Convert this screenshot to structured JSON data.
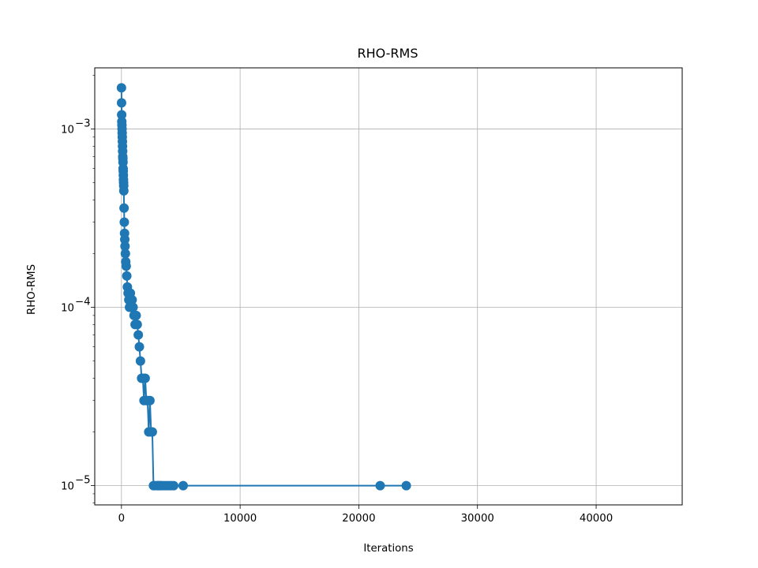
{
  "chart_data": {
    "type": "line",
    "title": "RHO-RMS",
    "xlabel": "Iterations",
    "ylabel": "RHO-RMS",
    "xscale": "linear",
    "yscale": "log",
    "xlim": [
      -2250,
      47250
    ],
    "ylim": [
      7.8e-06,
      0.0022
    ],
    "grid": true,
    "legend": "none",
    "series_color": "#1f77b4",
    "xticks": [
      {
        "value": 0,
        "label": "0"
      },
      {
        "value": 10000,
        "label": "10000"
      },
      {
        "value": 20000,
        "label": "20000"
      },
      {
        "value": 30000,
        "label": "30000"
      },
      {
        "value": 40000,
        "label": "40000"
      }
    ],
    "yticks": [
      {
        "value": 1e-05,
        "base": "10",
        "exp": "−5"
      },
      {
        "value": 0.0001,
        "base": "10",
        "exp": "−4"
      },
      {
        "value": 0.001,
        "base": "10",
        "exp": "−3"
      }
    ],
    "series": [
      {
        "x": [
          0,
          10,
          20,
          30,
          40,
          50,
          60,
          70,
          80,
          90,
          100,
          110,
          120,
          130,
          140,
          150,
          160,
          170,
          180,
          190,
          200,
          220,
          240,
          260,
          280,
          300,
          330,
          360,
          400,
          450,
          500,
          560,
          620,
          680,
          750,
          820,
          900,
          980,
          1060,
          1150,
          1240,
          1330,
          1420,
          1510,
          1600,
          1700,
          1800,
          1900,
          2000,
          2100,
          2200,
          2300,
          2400,
          2500,
          2600,
          2700,
          2800,
          3000,
          3100,
          3200,
          3300,
          3400,
          3600,
          3800,
          4000,
          4200,
          4400,
          5200,
          21800,
          24000
        ],
        "y": [
          0.0017,
          0.0014,
          0.0012,
          0.0011,
          0.00105,
          0.001,
          0.00095,
          0.0009,
          0.00085,
          0.0008,
          0.00075,
          0.0007,
          0.00068,
          0.00065,
          0.0006,
          0.00058,
          0.00055,
          0.00052,
          0.0005,
          0.00048,
          0.00045,
          0.00036,
          0.0003,
          0.00026,
          0.00024,
          0.00022,
          0.0002,
          0.00018,
          0.00017,
          0.00015,
          0.00013,
          0.00012,
          0.00011,
          0.0001,
          0.00012,
          0.0001,
          0.00011,
          0.0001,
          9e-05,
          8e-05,
          9e-05,
          8e-05,
          7e-05,
          6e-05,
          5e-05,
          4e-05,
          4e-05,
          3e-05,
          4e-05,
          3e-05,
          3e-05,
          2e-05,
          3e-05,
          2e-05,
          2e-05,
          1e-05,
          1e-05,
          1e-05,
          1e-05,
          1e-05,
          1e-05,
          1e-05,
          1e-05,
          1e-05,
          1e-05,
          1e-05,
          1e-05,
          1e-05,
          1e-05,
          1e-05
        ]
      }
    ]
  }
}
